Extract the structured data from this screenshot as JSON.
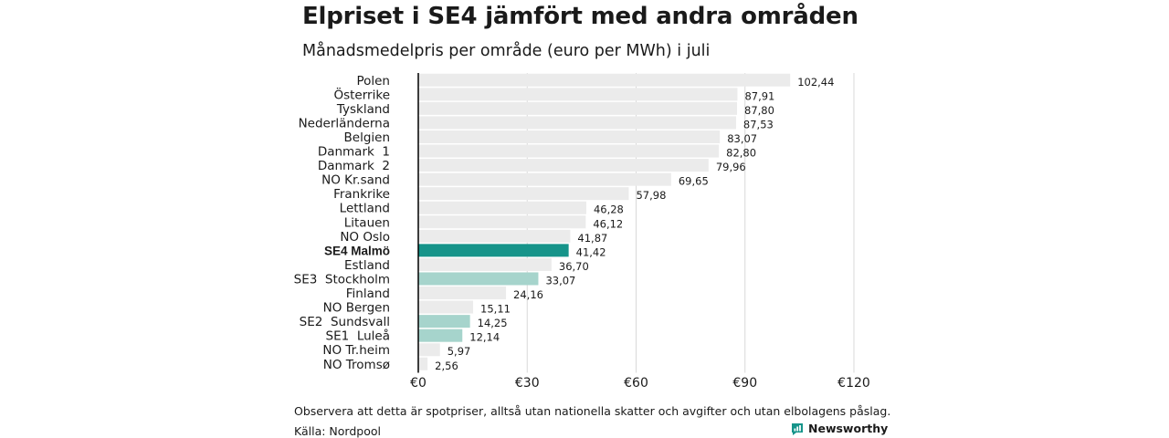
{
  "header": {
    "title": "Elpriset i SE4 jämfört med andra områden",
    "subtitle": "Månadsmedelpris per område (euro per MWh) i juli"
  },
  "footer": {
    "note": "Observera att detta är spotpriser, alltså utan nationella skatter och avgifter och utan elbolagens påslag.",
    "source": "Källa: Nordpool",
    "brand": "Newsworthy"
  },
  "colors": {
    "default_bar": "#ebebeb",
    "highlight_bar": "#16948a",
    "swedish_bar": "#a6d4cc",
    "grid": "#d9d9d9",
    "axis": "#000000"
  },
  "chart_data": {
    "type": "bar",
    "orientation": "horizontal",
    "title": "Elpriset i SE4 jämfört med andra områden",
    "subtitle": "Månadsmedelpris per område (euro per MWh) i juli",
    "categories": [
      "Polen",
      "Österrike",
      "Tyskland",
      "Nederländerna",
      "Belgien",
      "Danmark  1",
      "Danmark  2",
      "NO Kr.sand",
      "Frankrike",
      "Lettland",
      "Litauen",
      "NO Oslo",
      "SE4 Malmö",
      "Estland",
      "SE3  Stockholm",
      "Finland",
      "NO Bergen",
      "SE2  Sundsvall",
      "SE1  Luleå",
      "NO Tr.heim",
      "NO Tromsø"
    ],
    "values": [
      102.44,
      87.91,
      87.8,
      87.53,
      83.07,
      82.8,
      79.96,
      69.65,
      57.98,
      46.28,
      46.12,
      41.87,
      41.42,
      36.7,
      33.07,
      24.16,
      15.11,
      14.25,
      12.14,
      5.97,
      2.56
    ],
    "value_labels": [
      "102,44",
      "87,91",
      "87,80",
      "87,53",
      "83,07",
      "82,80",
      "79,96",
      "69,65",
      "57,98",
      "46,28",
      "46,12",
      "41,87",
      "41,42",
      "36,70",
      "33,07",
      "24,16",
      "15,11",
      "14,25",
      "12,14",
      "5,97",
      "2,56"
    ],
    "bar_group": [
      "other",
      "other",
      "other",
      "other",
      "other",
      "other",
      "other",
      "other",
      "other",
      "other",
      "other",
      "other",
      "highlight",
      "other",
      "swedish",
      "other",
      "other",
      "swedish",
      "swedish",
      "other",
      "other"
    ],
    "xlim": [
      0,
      120
    ],
    "xticks": [
      0,
      30,
      60,
      90,
      120
    ],
    "xtick_labels": [
      "€0",
      "€30",
      "€60",
      "€90",
      "€120"
    ],
    "grid": true,
    "legend": "none"
  }
}
